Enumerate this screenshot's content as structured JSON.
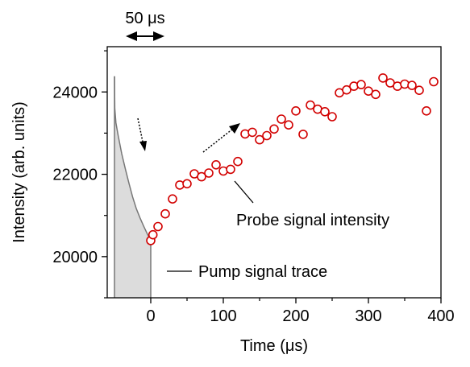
{
  "chart_data": {
    "type": "scatter",
    "xlabel": "Time (μs)",
    "ylabel": "Intensity (arb. units)",
    "xlim": [
      -60,
      400
    ],
    "ylim": [
      19000,
      25100
    ],
    "xticks": [
      0,
      100,
      200,
      300,
      400
    ],
    "yticks": [
      20000,
      22000,
      24000
    ],
    "xtick_labels": [
      "0",
      "100",
      "200",
      "300",
      "400"
    ],
    "ytick_labels": [
      "20000",
      "22000",
      "24000"
    ],
    "grid": false,
    "pump_trace": {
      "color": "#777777",
      "fill": "#dcdcdc",
      "start": -50,
      "end": 0,
      "baseline": 19000,
      "points": [
        [
          -50,
          24380
        ],
        [
          -49.5,
          23600
        ],
        [
          -48,
          23250
        ],
        [
          -45,
          22950
        ],
        [
          -40,
          22500
        ],
        [
          -35,
          22130
        ],
        [
          -30,
          21780
        ],
        [
          -25,
          21450
        ],
        [
          -20,
          21170
        ],
        [
          -15,
          20950
        ],
        [
          -10,
          20750
        ],
        [
          -5,
          20560
        ],
        [
          0,
          20380
        ]
      ]
    },
    "probe_points": {
      "color": "#d20000",
      "x": [
        0,
        3,
        10,
        20,
        30,
        40,
        50,
        60,
        70,
        80,
        90,
        100,
        110,
        120,
        130,
        140,
        150,
        160,
        170,
        180,
        190,
        200,
        210,
        220,
        230,
        240,
        250,
        260,
        270,
        280,
        290,
        300,
        310,
        320,
        330,
        340,
        350,
        360,
        370,
        380,
        390
      ],
      "y": [
        20390,
        20530,
        20730,
        21040,
        21400,
        21740,
        21770,
        22010,
        21940,
        22030,
        22230,
        22080,
        22120,
        22310,
        22980,
        23020,
        22840,
        22940,
        23100,
        23340,
        23200,
        23540,
        22970,
        23680,
        23580,
        23520,
        23400,
        23980,
        24050,
        24140,
        24180,
        24020,
        23940,
        24340,
        24220,
        24140,
        24190,
        24160,
        24040,
        23540,
        24250
      ]
    },
    "annotations": {
      "scale_label": "50 μs",
      "probe_label": "Probe signal intensity",
      "pump_label": "Pump signal trace"
    }
  }
}
